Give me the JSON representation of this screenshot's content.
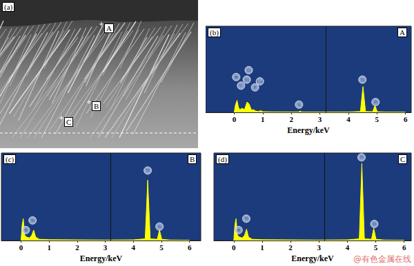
{
  "image_panel": {
    "label": "(a)",
    "points": [
      "A",
      "B",
      "C"
    ]
  },
  "watermark": "@有色金属在线",
  "chart_data": [
    {
      "type": "line",
      "panel_label": "(b)",
      "point": "A",
      "x_label": "Energy/keV",
      "x": [
        0,
        0.04,
        0.1,
        0.15,
        0.2,
        0.28,
        0.36,
        0.45,
        0.52,
        0.6,
        0.68,
        0.76,
        0.85,
        0.93,
        1.0,
        1.3,
        2.0,
        2.25,
        2.31,
        2.37,
        3.0,
        4.0,
        4.42,
        4.51,
        4.6,
        4.85,
        4.93,
        5.01,
        5.3,
        6.0
      ],
      "values": [
        0,
        8,
        14,
        6,
        3,
        5,
        3,
        12,
        10,
        3,
        3,
        1.5,
        1,
        2,
        0.8,
        0.6,
        0.5,
        0.5,
        1.5,
        0.5,
        0.4,
        0.5,
        1,
        30,
        1,
        0.8,
        8,
        0.8,
        0.4,
        0.3
      ],
      "color": "#ffff00",
      "xlim": [
        -1,
        6.2
      ],
      "xticks": [
        0,
        1,
        2,
        3,
        4,
        5,
        6
      ],
      "ylim": [
        0,
        100
      ],
      "tick_labels": "x",
      "grid": false,
      "cursor": 3.2,
      "annotations": [
        {
          "text": "B",
          "x": 0.07,
          "y": 41
        },
        {
          "text": "C",
          "x": 0.24,
          "y": 31
        },
        {
          "text": "Ti",
          "x": 0.44,
          "y": 38
        },
        {
          "text": "O",
          "x": 0.51,
          "y": 49
        },
        {
          "text": "F",
          "x": 0.73,
          "y": 29
        },
        {
          "text": "Cu",
          "x": 0.9,
          "y": 36
        },
        {
          "text": "S",
          "x": 2.27,
          "y": 9
        },
        {
          "text": "Ti",
          "x": 4.49,
          "y": 38
        },
        {
          "text": "Ti",
          "x": 4.95,
          "y": 12
        }
      ]
    },
    {
      "type": "line",
      "panel_label": "(c)",
      "point": "B",
      "x_label": "Energy/keV",
      "x": [
        0,
        0.04,
        0.08,
        0.13,
        0.2,
        0.3,
        0.38,
        0.45,
        0.52,
        0.65,
        1.0,
        2.0,
        3.0,
        4.0,
        4.42,
        4.51,
        4.6,
        4.85,
        4.93,
        5.01,
        5.3,
        6.0
      ],
      "values": [
        0,
        18,
        25,
        6,
        4,
        3,
        6,
        12,
        4,
        1.5,
        1,
        0.8,
        0.6,
        0.8,
        2,
        69,
        2,
        1.5,
        12,
        1.5,
        0.6,
        0.4
      ],
      "color": "#ffff00",
      "xlim": [
        -0.7,
        6.4
      ],
      "xticks": [
        0,
        1,
        2,
        3,
        4,
        5,
        6
      ],
      "ylim": [
        0,
        100
      ],
      "tick_labels": "x",
      "grid": false,
      "cursor": 3.2,
      "annotations": [
        {
          "text": "B",
          "x": 0.17,
          "y": 12
        },
        {
          "text": "Ti",
          "x": 0.41,
          "y": 23
        },
        {
          "text": "Ti",
          "x": 4.51,
          "y": 80
        },
        {
          "text": "Ti",
          "x": 4.93,
          "y": 16
        }
      ]
    },
    {
      "type": "line",
      "panel_label": "(d)",
      "point": "C",
      "x_label": "Energy/keV",
      "x": [
        0,
        0.04,
        0.08,
        0.13,
        0.2,
        0.3,
        0.38,
        0.45,
        0.52,
        0.65,
        1.0,
        2.0,
        3.0,
        4.0,
        4.42,
        4.51,
        4.6,
        4.85,
        4.93,
        5.01,
        5.3,
        6.0
      ],
      "values": [
        0,
        18,
        25,
        6,
        4,
        3,
        6,
        13,
        4,
        1.5,
        1,
        0.8,
        0.6,
        0.8,
        2,
        88,
        2,
        1.5,
        14,
        1.5,
        0.6,
        0.4
      ],
      "color": "#ffff00",
      "xlim": [
        -0.7,
        6.25
      ],
      "xticks": [
        0,
        1,
        2,
        3,
        4,
        5,
        6
      ],
      "ylim": [
        0,
        100
      ],
      "tick_labels": "x",
      "grid": false,
      "cursor": 3.2,
      "annotations": [
        {
          "text": "B",
          "x": 0.17,
          "y": 12
        },
        {
          "text": "Ti",
          "x": 0.44,
          "y": 25
        },
        {
          "text": "Ti",
          "x": 4.5,
          "y": 95
        },
        {
          "text": "Ti",
          "x": 4.95,
          "y": 19
        }
      ]
    }
  ]
}
